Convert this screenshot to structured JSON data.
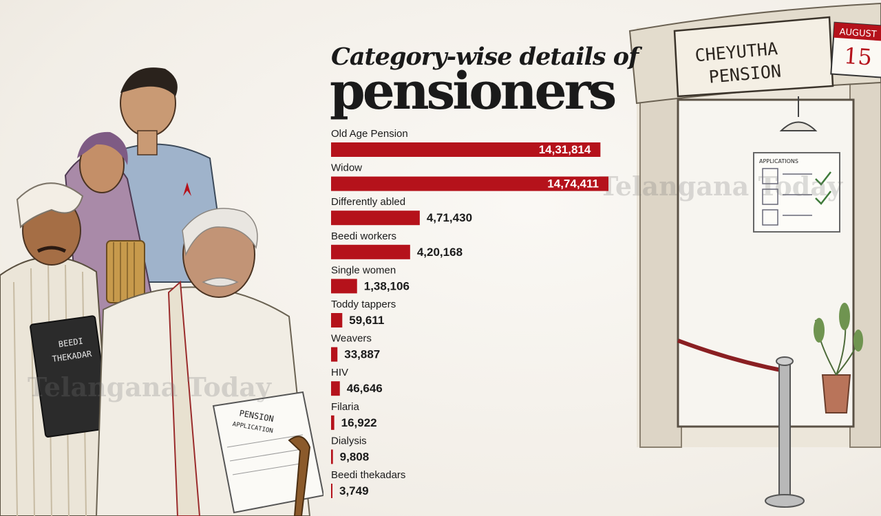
{
  "title_line1": "Category-wise details of",
  "title_line2": "pensioners",
  "watermark": "Telangana Today",
  "sign": {
    "line1": "CHEYUTHA",
    "line2": "PENSION",
    "calendar_month": "AUGUST",
    "calendar_day": "15",
    "board_title": "APPLICATIONS"
  },
  "book_label_1": "BEEDI",
  "book_label_2": "THEKADAR",
  "paper_label_1": "PENSION",
  "paper_label_2": "APPLICATION",
  "colors": {
    "bar": "#b5121b",
    "text": "#1a1a1a",
    "value_inside": "#ffffff"
  },
  "chart_data": {
    "type": "bar",
    "orientation": "horizontal",
    "categories": [
      "Old Age Pension",
      "Widow",
      "Differently abled",
      "Beedi workers",
      "Single women",
      "Toddy tappers",
      "Weavers",
      "HIV",
      "Filaria",
      "Dialysis",
      "Beedi thekadars"
    ],
    "values": [
      1431814,
      1474411,
      471430,
      420168,
      138106,
      59611,
      33887,
      46646,
      16922,
      9808,
      3749
    ],
    "value_labels": [
      "14,31,814",
      "14,74,411",
      "4,71,430",
      "4,20,168",
      "1,38,106",
      "59,611",
      "33,887",
      "46,646",
      "16,922",
      "9,808",
      "3,749"
    ],
    "grid": false,
    "legend": "none"
  }
}
